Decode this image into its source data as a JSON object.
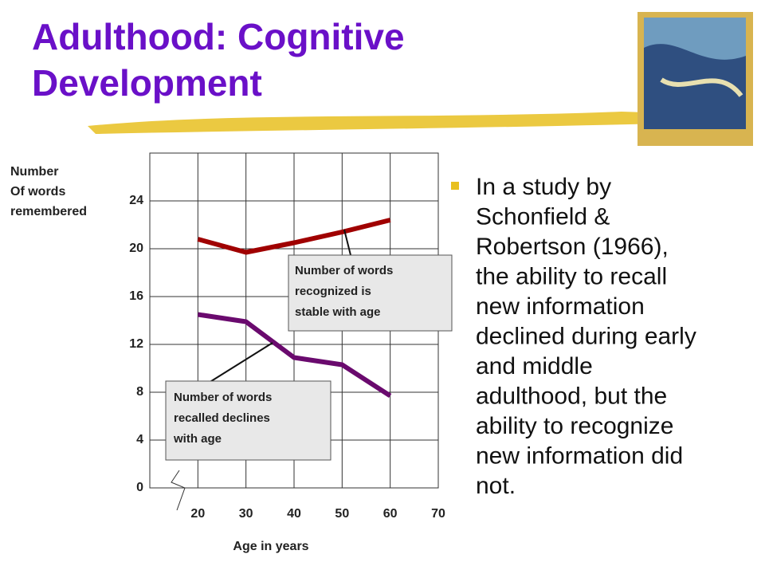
{
  "title_lines": [
    "Adulthood: Cognitive",
    "Development"
  ],
  "bullet": {
    "lines": [
      "In a study by",
      "Schonfield &",
      "Robertson (1966),",
      "the ability to recall",
      "new information",
      "declined during early",
      "and middle",
      "adulthood, but the",
      "ability to recognize",
      "new information did",
      "not."
    ]
  },
  "chart_data": {
    "type": "line",
    "x_label": "Age in years",
    "y_label_lines": [
      "Number",
      "Of words",
      "remembered"
    ],
    "xlim": [
      10,
      70
    ],
    "xticks": [
      20,
      30,
      40,
      50,
      60,
      70
    ],
    "ylim": [
      0,
      28
    ],
    "yticks": [
      0,
      4,
      8,
      12,
      16,
      20,
      24
    ],
    "grid": true,
    "series": [
      {
        "name": "Recognized",
        "color": "#a00000",
        "x": [
          20,
          30,
          40,
          50,
          60
        ],
        "values": [
          20.8,
          19.7,
          20.5,
          21.4,
          22.4
        ]
      },
      {
        "name": "Recalled",
        "color": "#6a0a6e",
        "x": [
          20,
          30,
          40,
          50,
          60
        ],
        "values": [
          14.5,
          13.9,
          10.9,
          10.3,
          7.7
        ]
      }
    ],
    "annotations": [
      {
        "lines": [
          "Number of words",
          "recognized is",
          "stable with age"
        ]
      },
      {
        "lines": [
          "Number of words",
          "recalled declines",
          "with age"
        ]
      }
    ]
  }
}
